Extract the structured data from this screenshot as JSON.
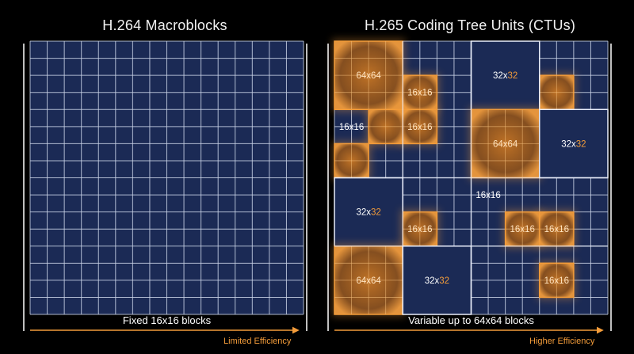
{
  "panels": {
    "left": {
      "title": "H.264 Macroblocks",
      "caption": "Fixed 16x16 blocks",
      "arrow_label": "Limited Efficiency"
    },
    "right": {
      "title": "H.265 Coding Tree Units (CTUs)",
      "caption": "Variable up to 64x64 blocks",
      "arrow_label": "Higher Efficiency"
    }
  },
  "blocks": [
    {
      "id": "blk-64-a",
      "size": "64x64",
      "label": "64x64",
      "highlight": true
    },
    {
      "id": "blk-32-a",
      "size": "32x32",
      "label": "32x32",
      "highlight": false
    },
    {
      "id": "blk-16-a",
      "size": "16x16",
      "label": "16x16",
      "highlight": true
    },
    {
      "id": "blk-16-b",
      "size": "16x16",
      "label": "16x16",
      "highlight": false
    },
    {
      "id": "blk-16-c",
      "size": "16x16",
      "label": "16x16",
      "highlight": true
    },
    {
      "id": "blk-64-b",
      "size": "64x64",
      "label": "64x64",
      "highlight": true
    },
    {
      "id": "blk-32-b",
      "size": "32x32",
      "label": "32x32",
      "highlight": false
    },
    {
      "id": "blk-16-d",
      "size": "16x16",
      "label": "16x16",
      "highlight": false
    },
    {
      "id": "blk-32-c",
      "size": "32x32",
      "label": "32x32",
      "highlight": false
    },
    {
      "id": "blk-16-e",
      "size": "16x16",
      "label": "16x16",
      "highlight": true
    },
    {
      "id": "blk-16-f",
      "size": "16x16",
      "label": "16x16",
      "highlight": true
    },
    {
      "id": "blk-16-g",
      "size": "16x16",
      "label": "16x16",
      "highlight": true
    },
    {
      "id": "blk-64-c",
      "size": "64x64",
      "label": "64x64",
      "highlight": true
    },
    {
      "id": "blk-32-d",
      "size": "32x32",
      "label": "32x32",
      "highlight": false
    },
    {
      "id": "blk-16-h",
      "size": "16x16",
      "label": "16x16",
      "highlight": true
    }
  ],
  "colors": {
    "background": "#000000",
    "grid_fill": "#1b2a55",
    "grid_line": "#c9d2e6",
    "accent": "#f39c3a",
    "glow_fill": "#b86a1c"
  }
}
